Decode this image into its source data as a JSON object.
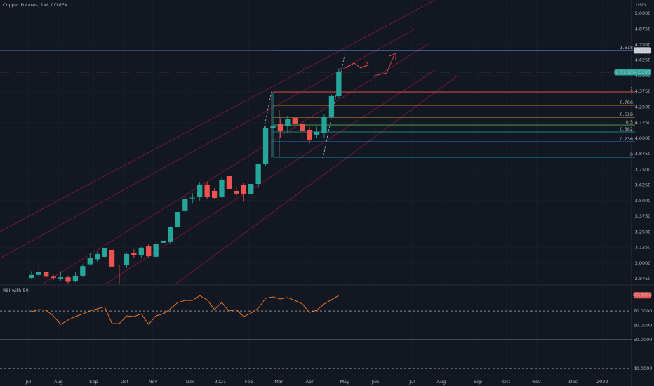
{
  "chart_data": [
    {
      "type": "candlestick",
      "title": "Copper Futures, 1W, COMEX",
      "currency": "USD",
      "up_color": "#26a69a",
      "down_color": "#ef5350",
      "x": [
        0,
        1,
        2,
        3,
        4,
        5,
        6,
        7,
        8,
        9,
        10,
        11,
        12,
        13,
        14,
        15,
        16,
        17,
        18,
        19,
        20,
        21,
        22,
        23,
        24,
        25,
        26,
        27,
        28,
        29,
        30,
        31,
        32,
        33,
        34,
        35,
        36,
        37,
        38,
        39,
        40,
        41,
        42
      ],
      "open": [
        2.88,
        2.904,
        2.926,
        2.895,
        2.87,
        2.885,
        2.855,
        2.898,
        2.99,
        3.03,
        3.05,
        3.106,
        2.971,
        2.982,
        3.083,
        3.061,
        3.134,
        3.05,
        3.162,
        3.168,
        3.286,
        3.421,
        3.52,
        3.527,
        3.629,
        3.578,
        3.533,
        3.696,
        3.578,
        3.623,
        3.55,
        3.634,
        3.797,
        4.078,
        4.112,
        4.095,
        4.163,
        4.112,
        4.067,
        4.028,
        4.039,
        4.174,
        4.337
      ],
      "high": [
        2.935,
        2.99,
        2.94,
        2.905,
        2.935,
        2.9,
        2.925,
        2.99,
        3.08,
        3.09,
        3.12,
        3.12,
        2.99,
        3.085,
        3.11,
        3.13,
        3.15,
        3.16,
        3.19,
        3.3,
        3.43,
        3.53,
        3.56,
        3.65,
        3.65,
        3.6,
        3.69,
        3.75,
        3.61,
        3.64,
        3.66,
        3.8,
        4.1,
        4.37,
        4.16,
        4.18,
        4.17,
        4.14,
        4.09,
        4.09,
        4.19,
        4.35,
        4.56
      ],
      "low": [
        2.87,
        2.89,
        2.875,
        2.865,
        2.855,
        2.83,
        2.845,
        2.89,
        2.98,
        3.01,
        3.04,
        2.965,
        2.83,
        2.96,
        3.04,
        3.04,
        3.04,
        3.04,
        3.14,
        3.15,
        3.27,
        3.4,
        3.48,
        3.5,
        3.51,
        3.51,
        3.52,
        3.58,
        3.53,
        3.49,
        3.5,
        3.6,
        3.78,
        3.85,
        4.0,
        4.04,
        4.07,
        3.99,
        3.96,
        4.0,
        4.0,
        4.16,
        4.32
      ],
      "close": [
        2.904,
        2.926,
        2.895,
        2.88,
        2.885,
        2.85,
        2.898,
        2.975,
        3.038,
        3.072,
        3.117,
        2.971,
        2.965,
        3.072,
        3.061,
        3.123,
        3.055,
        3.151,
        3.179,
        3.291,
        3.409,
        3.516,
        3.524,
        3.629,
        3.527,
        3.522,
        3.668,
        3.589,
        3.556,
        3.55,
        3.634,
        3.792,
        4.078,
        4.095,
        4.061,
        4.151,
        4.112,
        4.061,
        3.983,
        4.05,
        4.174,
        4.337,
        4.528
      ],
      "last_price": {
        "symbol": "HGF2021",
        "value": 4.528,
        "label": "4.5280"
      },
      "xlim": [
        -4.3,
        82
      ],
      "xticks": [
        {
          "value": -0.4,
          "label": "Jul"
        },
        {
          "value": 3.7,
          "label": "Aug"
        },
        {
          "value": 8.5,
          "label": "Sep"
        },
        {
          "value": 12.7,
          "label": "Oct"
        },
        {
          "value": 16.6,
          "label": "Nov"
        },
        {
          "value": 21.7,
          "label": "Dec"
        },
        {
          "value": 25.8,
          "label": "2021"
        },
        {
          "value": 29.7,
          "label": "Feb"
        },
        {
          "value": 33.8,
          "label": "Mar"
        },
        {
          "value": 38.0,
          "label": "Apr"
        },
        {
          "value": 42.8,
          "label": "May"
        },
        {
          "value": 47.0,
          "label": "Jun"
        },
        {
          "value": 52.0,
          "label": "Jul"
        },
        {
          "value": 56.0,
          "label": "Aug"
        },
        {
          "value": 61.0,
          "label": "Sep"
        },
        {
          "value": 64.9,
          "label": "Oct"
        },
        {
          "value": 69.0,
          "label": "Nov"
        },
        {
          "value": 74.0,
          "label": "Dec"
        },
        {
          "value": 78.0,
          "label": "2022"
        }
      ],
      "ylim": [
        2.83,
        5.107
      ],
      "yticks": [
        {
          "value": 5.0,
          "label": "5.0000"
        },
        {
          "value": 4.875,
          "label": "4.8750"
        },
        {
          "value": 4.75,
          "label": "4.7500"
        },
        {
          "value": 4.625,
          "label": "4.6250"
        },
        {
          "value": 4.5,
          "label": "4.5000"
        },
        {
          "value": 4.375,
          "label": "4.3750"
        },
        {
          "value": 4.25,
          "label": "4.2500"
        },
        {
          "value": 4.125,
          "label": "4.1250"
        },
        {
          "value": 4.0,
          "label": "4.0000"
        },
        {
          "value": 3.875,
          "label": "3.8750"
        },
        {
          "value": 3.75,
          "label": "3.7500"
        },
        {
          "value": 3.625,
          "label": "3.6250"
        },
        {
          "value": 3.5,
          "label": "3.5000"
        },
        {
          "value": 3.375,
          "label": "3.3750"
        },
        {
          "value": 3.25,
          "label": "3.2500"
        },
        {
          "value": 3.125,
          "label": "3.1250"
        },
        {
          "value": 3.0,
          "label": "3.0000"
        },
        {
          "value": 2.875,
          "label": "2.8750"
        }
      ],
      "fib_start_x": 33,
      "fib_levels": [
        {
          "ratio": 1.618,
          "price": 4.703,
          "price_label": "4.7030",
          "color": "#5b9cf6"
        },
        {
          "ratio": 1,
          "price": 4.37,
          "color": "#ef5350"
        },
        {
          "ratio": 0.786,
          "price": 4.264,
          "color": "#ff9800"
        },
        {
          "ratio": 0.618,
          "price": 4.168,
          "color": "#f7c744"
        },
        {
          "ratio": 0.5,
          "price": 4.106,
          "color": "#4caf50"
        },
        {
          "ratio": 0.382,
          "price": 4.05,
          "color": "#26a69a"
        },
        {
          "ratio": 0.236,
          "price": 3.971,
          "color": "#2196f3"
        },
        {
          "ratio": 0,
          "price": 3.848,
          "color": "#00bcd4"
        }
      ]
    },
    {
      "type": "line",
      "title": "RSI with 50",
      "color": "#ff7f27",
      "x": [
        0,
        1,
        2,
        3,
        4,
        5,
        6,
        7,
        8,
        9,
        10,
        11,
        12,
        13,
        14,
        15,
        16,
        17,
        18,
        19,
        20,
        21,
        22,
        23,
        24,
        25,
        26,
        27,
        28,
        29,
        30,
        31,
        32,
        33,
        34,
        35,
        36,
        37,
        38,
        39,
        40,
        41,
        42
      ],
      "values": [
        69.5,
        71.0,
        70.5,
        66.6,
        60.7,
        63.7,
        66.1,
        68.0,
        70.0,
        71.5,
        72.9,
        61.2,
        61.2,
        66.6,
        66.1,
        68.0,
        60.7,
        66.6,
        68.0,
        71.5,
        75.9,
        77.3,
        77.3,
        80.7,
        77.8,
        71.0,
        75.9,
        70.0,
        71.0,
        66.1,
        68.5,
        72.0,
        78.8,
        79.8,
        78.3,
        79.3,
        77.3,
        74.9,
        69.0,
        70.5,
        74.9,
        77.8,
        80.9066
      ],
      "last_color": "#ef5350",
      "xlim": [
        -4.3,
        82
      ],
      "ylim": [
        23.7,
        87.1
      ],
      "yticks": [
        {
          "value": 70,
          "label": "70.0000"
        },
        {
          "value": 60,
          "label": "60.0000"
        },
        {
          "value": 50,
          "label": "50.0000"
        },
        {
          "value": 30,
          "label": "30.0000"
        }
      ]
    }
  ]
}
